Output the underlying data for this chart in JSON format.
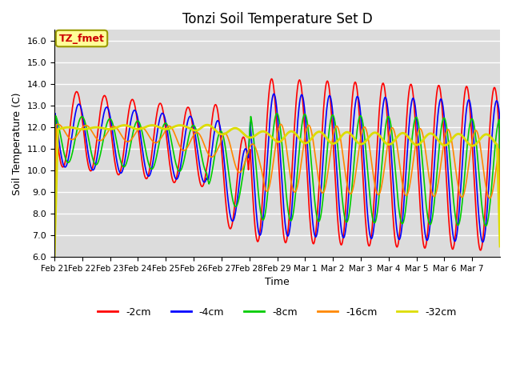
{
  "title": "Tonzi Soil Temperature Set D",
  "xlabel": "Time",
  "ylabel": "Soil Temperature (C)",
  "ylim": [
    6.0,
    16.5
  ],
  "yticks": [
    6.0,
    7.0,
    8.0,
    9.0,
    10.0,
    11.0,
    12.0,
    13.0,
    14.0,
    15.0,
    16.0
  ],
  "series_colors": [
    "#FF0000",
    "#0000FF",
    "#00CC00",
    "#FF8800",
    "#DDDD00"
  ],
  "series_labels": [
    "-2cm",
    "-4cm",
    "-8cm",
    "-16cm",
    "-32cm"
  ],
  "annotation_text": "TZ_fmet",
  "annotation_color": "#CC0000",
  "annotation_bg": "#FFFF99",
  "background_color": "#DCDCDC",
  "x_tick_labels": [
    "Feb 21",
    "Feb 22",
    "Feb 23",
    "Feb 24",
    "Feb 25",
    "Feb 26",
    "Feb 27",
    "Feb 28",
    "Feb 29",
    "Mar 1",
    "Mar 2",
    "Mar 3",
    "Mar 4",
    "Mar 5",
    "Mar 6",
    "Mar 7"
  ],
  "n_days": 16,
  "pts_per_day": 48,
  "title_fontsize": 12
}
